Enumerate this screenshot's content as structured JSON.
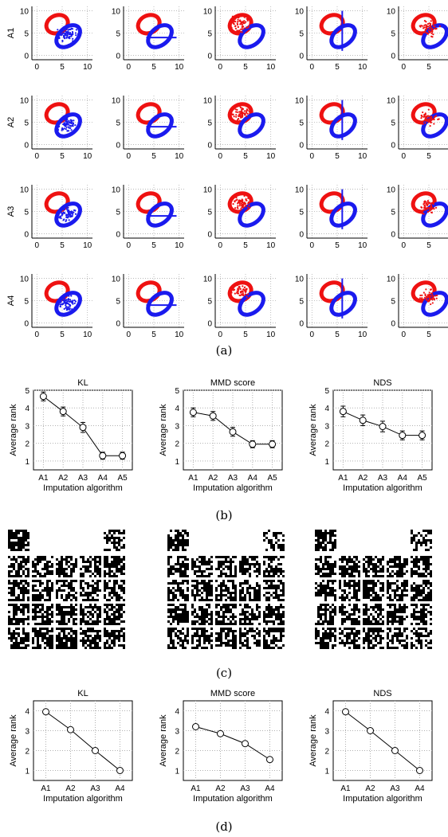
{
  "captions": [
    "(a)",
    "(b)",
    "(c)",
    "(d)"
  ],
  "colors": {
    "red": "#ee1111",
    "blue": "#1a1aee",
    "line": "#000000",
    "grid": "#b0b0b0"
  },
  "panel_a": {
    "row_labels": [
      "A1",
      "A2",
      "A3",
      "A4"
    ],
    "ticks": [
      "0",
      "5",
      "10"
    ],
    "columns": 5
  },
  "chart_data": [
    {
      "type": "line",
      "panel": "b",
      "title": "KL",
      "xlabel": "Imputation algorithm",
      "ylabel": "Average rank",
      "categories": [
        "A1",
        "A2",
        "A3",
        "A4",
        "A5"
      ],
      "values": [
        4.65,
        3.8,
        2.9,
        1.3,
        1.3
      ],
      "errors": [
        0.25,
        0.25,
        0.28,
        0.2,
        0.2
      ],
      "yticks": [
        "1",
        "2",
        "3",
        "4",
        "5"
      ],
      "ylim": [
        0.5,
        5.0
      ],
      "grid": true
    },
    {
      "type": "line",
      "panel": "b",
      "title": "MMD score",
      "xlabel": "Imputation algorithm",
      "ylabel": "Average rank",
      "categories": [
        "A1",
        "A2",
        "A3",
        "A4",
        "A5"
      ],
      "values": [
        3.75,
        3.55,
        2.65,
        1.95,
        1.95
      ],
      "errors": [
        0.25,
        0.25,
        0.25,
        0.2,
        0.2
      ],
      "yticks": [
        "1",
        "2",
        "3",
        "4",
        "5"
      ],
      "ylim": [
        0.5,
        5.0
      ],
      "grid": true
    },
    {
      "type": "line",
      "panel": "b",
      "title": "NDS",
      "xlabel": "Imputation algorithm",
      "ylabel": "Average rank",
      "categories": [
        "A1",
        "A2",
        "A3",
        "A4",
        "A5"
      ],
      "values": [
        3.8,
        3.3,
        2.95,
        2.45,
        2.45
      ],
      "errors": [
        0.3,
        0.3,
        0.3,
        0.25,
        0.25
      ],
      "yticks": [
        "1",
        "2",
        "3",
        "4",
        "5"
      ],
      "ylim": [
        0.5,
        5.0
      ],
      "grid": true
    },
    {
      "type": "line",
      "panel": "d",
      "title": "KL",
      "xlabel": "Imputation algorithm",
      "ylabel": "Average rank",
      "categories": [
        "A1",
        "A2",
        "A3",
        "A4"
      ],
      "values": [
        3.95,
        3.05,
        2.0,
        1.0
      ],
      "yticks": [
        "1",
        "2",
        "3",
        "4"
      ],
      "ylim": [
        0.5,
        4.5
      ],
      "grid": true
    },
    {
      "type": "line",
      "panel": "d",
      "title": "MMD score",
      "xlabel": "Imputation algorithm",
      "ylabel": "Average rank",
      "categories": [
        "A1",
        "A2",
        "A3",
        "A4"
      ],
      "values": [
        3.2,
        2.85,
        2.35,
        1.55
      ],
      "yticks": [
        "1",
        "2",
        "3",
        "4"
      ],
      "ylim": [
        0.5,
        4.5
      ],
      "grid": true
    },
    {
      "type": "line",
      "panel": "d",
      "title": "NDS",
      "xlabel": "Imputation algorithm",
      "ylabel": "Average rank",
      "categories": [
        "A1",
        "A2",
        "A3",
        "A4"
      ],
      "values": [
        3.95,
        3.0,
        2.0,
        1.0
      ],
      "yticks": [
        "1",
        "2",
        "3",
        "4"
      ],
      "ylim": [
        0.5,
        4.5
      ],
      "grid": true
    }
  ]
}
